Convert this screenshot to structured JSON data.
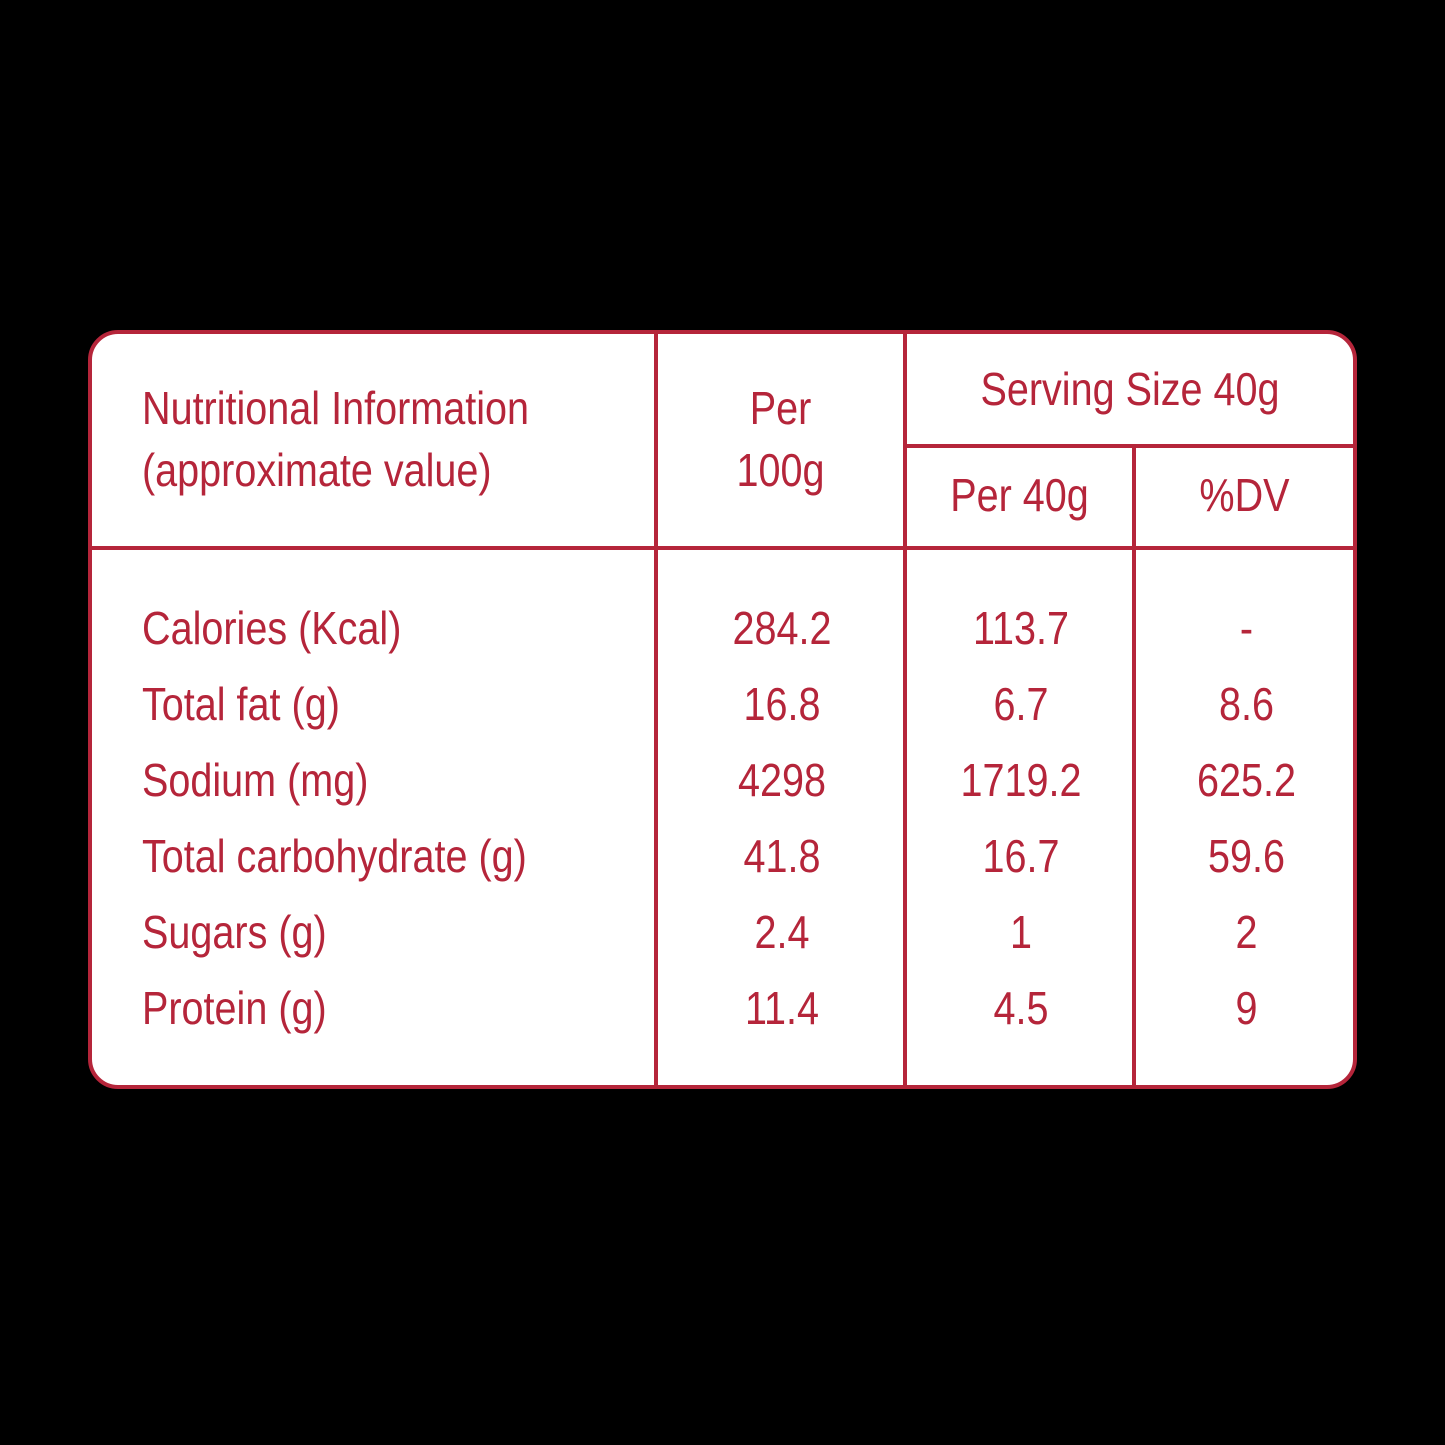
{
  "colors": {
    "background": "#000000",
    "panel": "#ffffff",
    "accent": "#b5253a"
  },
  "header": {
    "title_line1": "Nutritional Information",
    "title_line2": "(approximate value)",
    "per100_line1": "Per",
    "per100_line2": "100g",
    "serving_size": "Serving Size 40g",
    "per40": "Per 40g",
    "dv": "%DV"
  },
  "rows": [
    {
      "label": "Calories (Kcal)",
      "per100": "284.2",
      "per40": "113.7",
      "dv": "-"
    },
    {
      "label": "Total fat (g)",
      "per100": "16.8",
      "per40": "6.7",
      "dv": "8.6"
    },
    {
      "label": "Sodium (mg)",
      "per100": "4298",
      "per40": "1719.2",
      "dv": "625.2"
    },
    {
      "label": "Total carbohydrate (g)",
      "per100": "41.8",
      "per40": "16.7",
      "dv": "59.6"
    },
    {
      "label": "Sugars (g)",
      "per100": "2.4",
      "per40": "1",
      "dv": "2"
    },
    {
      "label": "Protein (g)",
      "per100": "11.4",
      "per40": "4.5",
      "dv": "9"
    }
  ]
}
